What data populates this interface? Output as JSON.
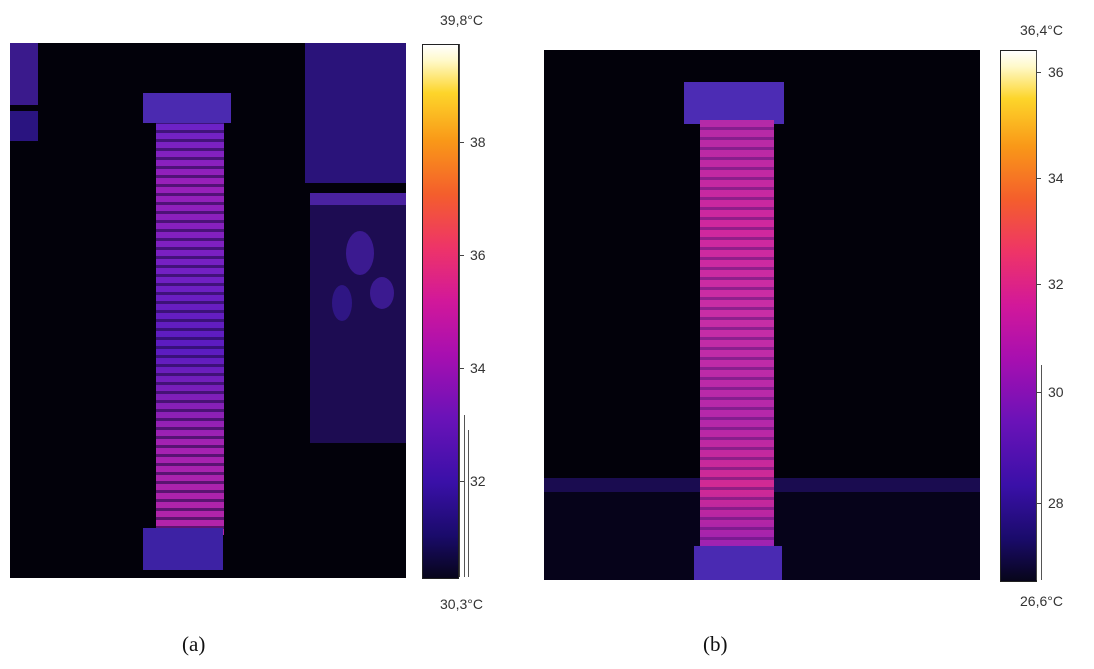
{
  "panels": [
    {
      "caption": "(a)",
      "scale_max": "39,8°C",
      "scale_min": "30,3°C",
      "ticks": [
        "38",
        "36",
        "34",
        "32"
      ]
    },
    {
      "caption": "(b)",
      "scale_max": "36,4°C",
      "scale_min": "26,6°C",
      "ticks": [
        "36",
        "34",
        "32",
        "30",
        "28"
      ]
    }
  ],
  "colors": {
    "background": "#02010a",
    "insulator_hot": "#c21ea0",
    "insulator_cool": "#5a1cc4"
  }
}
